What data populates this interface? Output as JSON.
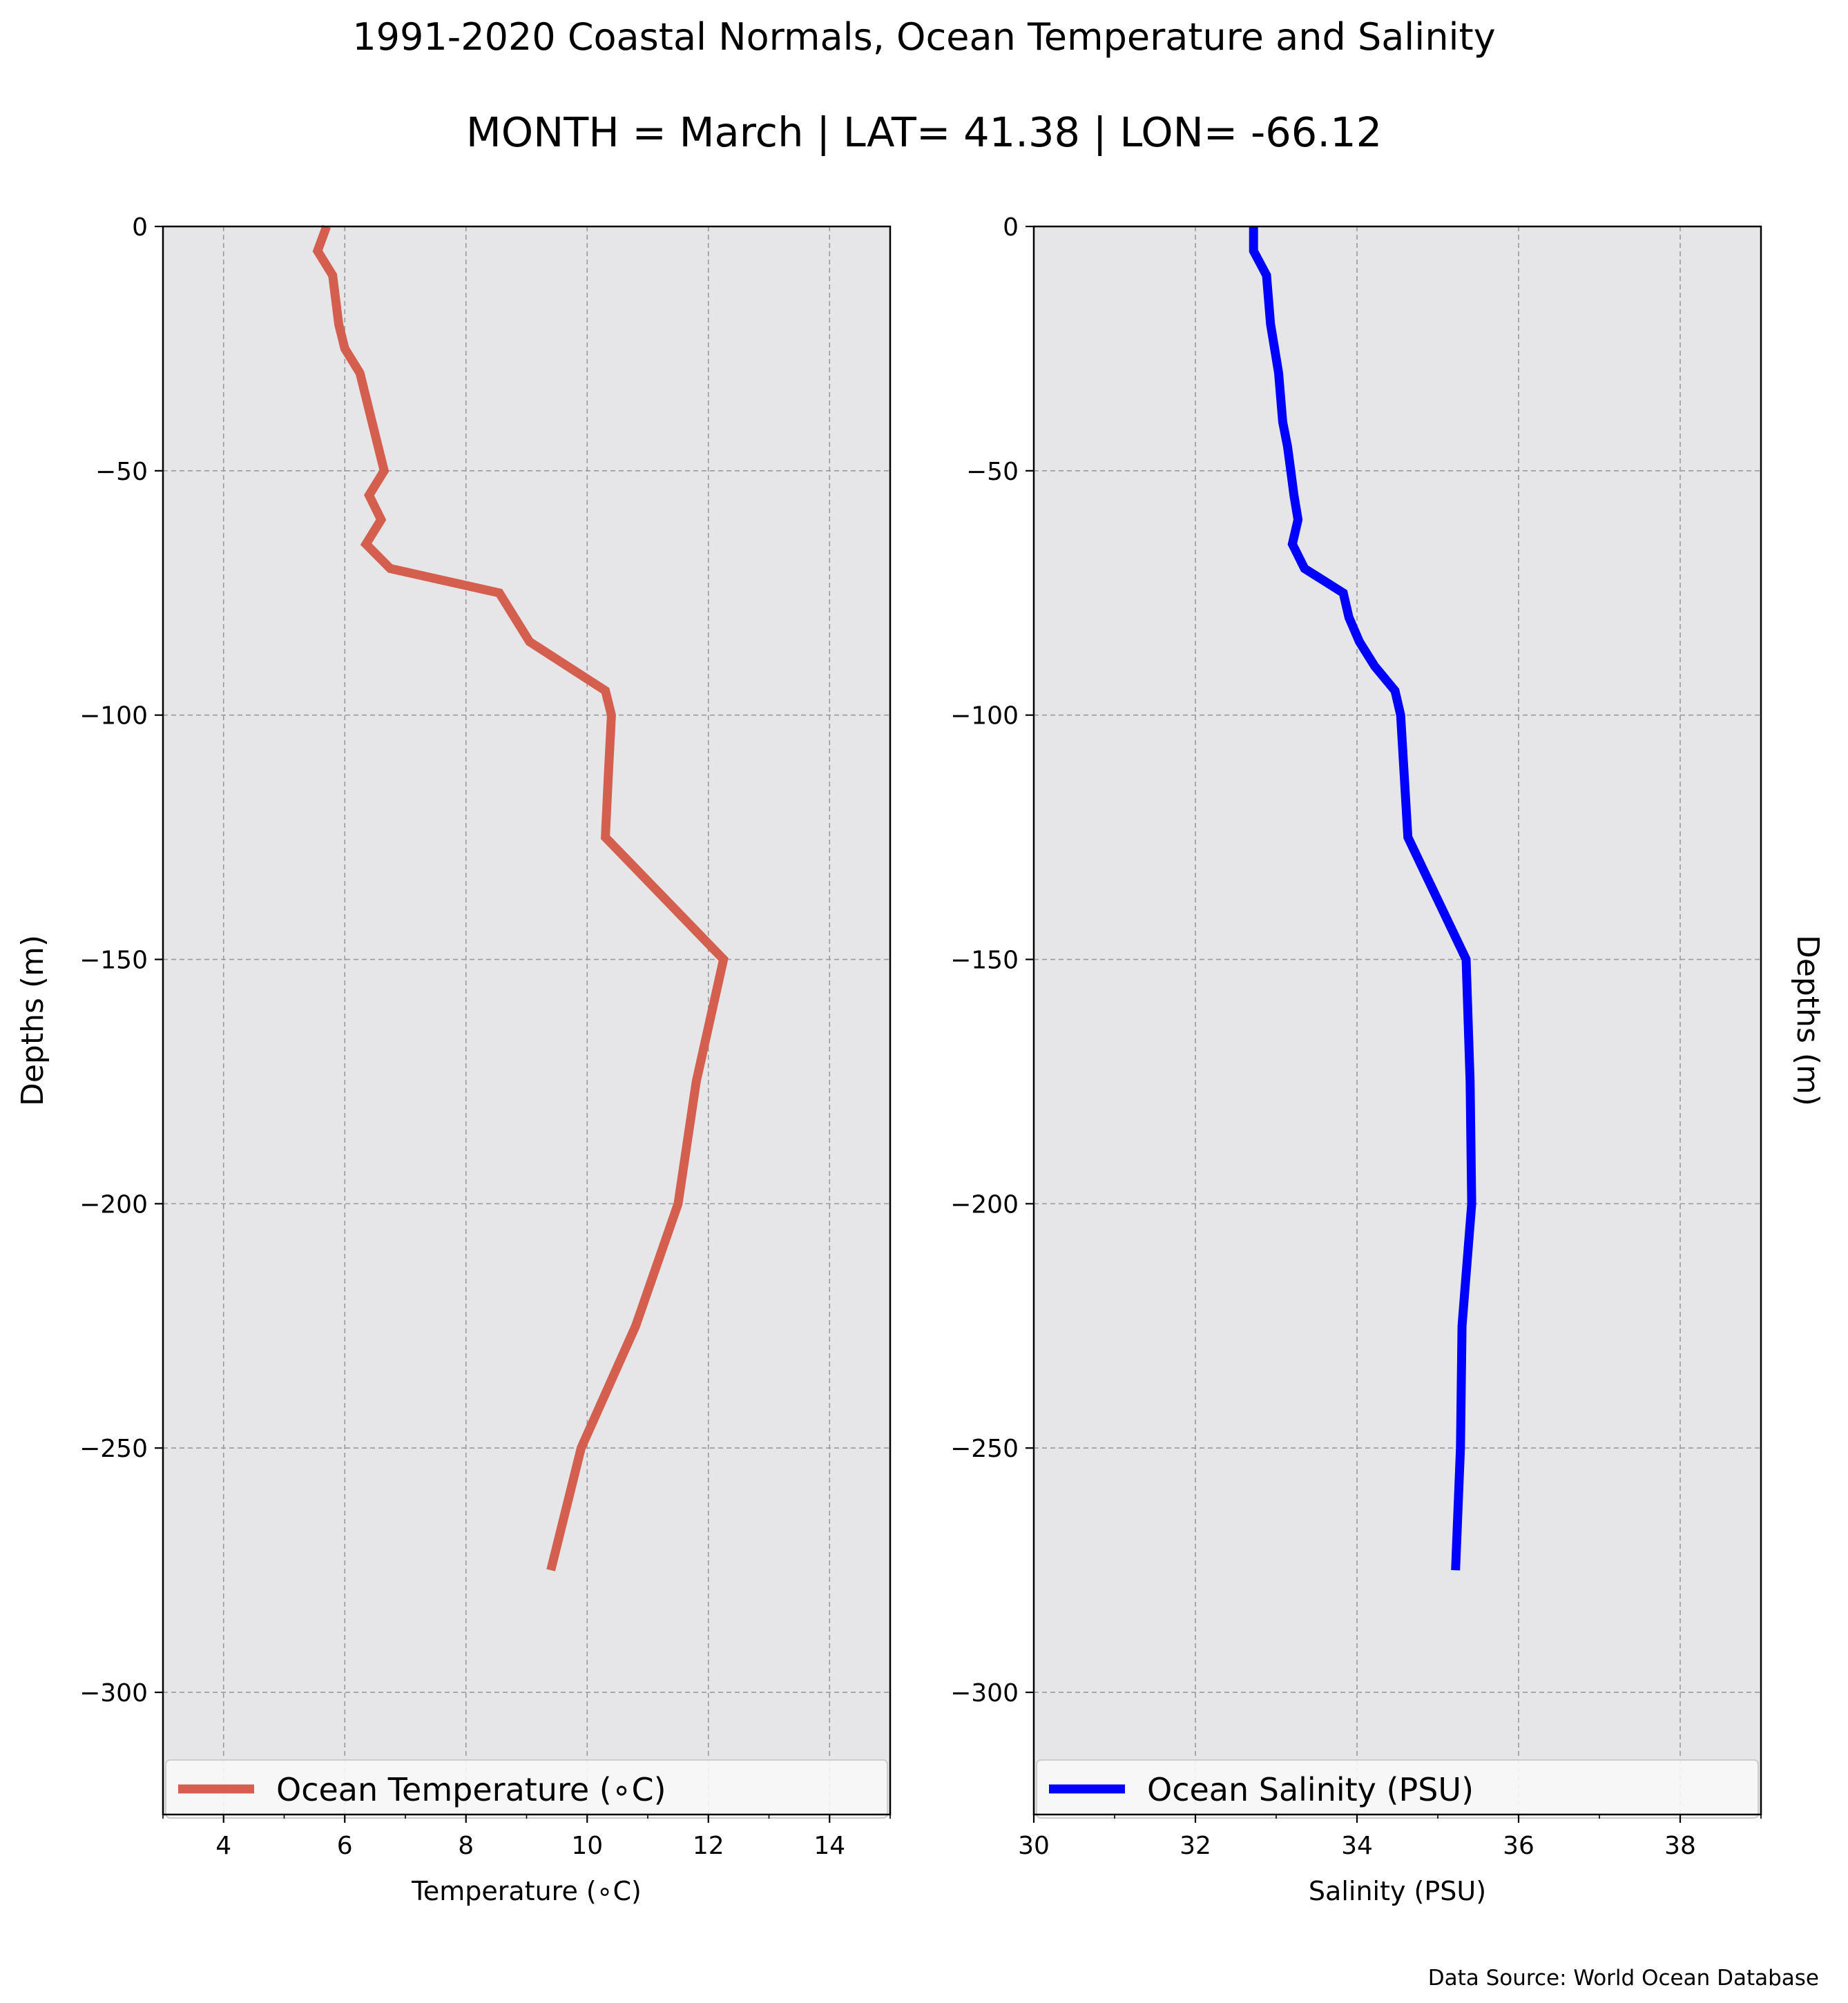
{
  "title": "1991-2020 Coastal Normals, Ocean Temperature and Salinity",
  "subtitle": "MONTH = March | LAT= 41.38 | LON= -66.12",
  "source_note": "Data Source: World Ocean Database",
  "colors": {
    "plot_background": "#e6e6e8",
    "grid": "#999999",
    "temperature_line": "#d55f4e",
    "salinity_line": "#0000ff",
    "axis": "#000000",
    "legend_background": "#f8f8f8",
    "legend_border": "#cccccc"
  },
  "chart_data": [
    {
      "type": "line",
      "xlabel": "Temperature (∘C)",
      "ylabel": "Depths (m)",
      "xlim": [
        3,
        15
      ],
      "ylim": [
        -325,
        0
      ],
      "xticks": [
        4,
        6,
        8,
        10,
        12,
        14
      ],
      "xtick_labels": [
        "4",
        "6",
        "8",
        "10",
        "12",
        "14"
      ],
      "xminor_ticks": [
        3,
        5,
        7,
        9,
        11,
        13,
        15
      ],
      "yticks": [
        0,
        -50,
        -100,
        -150,
        -200,
        -250,
        -300
      ],
      "ytick_labels": [
        "0",
        "−50",
        "−100",
        "−150",
        "−200",
        "−250",
        "−300"
      ],
      "grid": true,
      "legend_placement": "bottom",
      "series": [
        {
          "name": "Ocean Temperature (∘C)",
          "color": "#d55f4e",
          "x": [
            5.7,
            5.55,
            5.8,
            5.9,
            6.0,
            6.25,
            6.45,
            6.55,
            6.65,
            6.4,
            6.6,
            6.35,
            6.75,
            8.55,
            8.8,
            9.05,
            10.3,
            10.4,
            10.35,
            10.3,
            12.25,
            11.8,
            11.5,
            10.8,
            9.9,
            9.4
          ],
          "y": [
            0,
            -5,
            -10,
            -20,
            -25,
            -30,
            -40,
            -45,
            -50,
            -55,
            -60,
            -65,
            -70,
            -75,
            -80,
            -85,
            -95,
            -100,
            -112,
            -125,
            -150,
            -175,
            -200,
            -225,
            -250,
            -275
          ]
        }
      ]
    },
    {
      "type": "line",
      "xlabel": "Salinity (PSU)",
      "ylabel": "Depths (m)",
      "xlim": [
        30,
        39
      ],
      "ylim": [
        -325,
        0
      ],
      "xticks": [
        30,
        32,
        34,
        36,
        38
      ],
      "xtick_labels": [
        "30",
        "32",
        "34",
        "36",
        "38"
      ],
      "xminor_ticks": [
        31,
        33,
        35,
        37,
        39
      ],
      "yticks": [
        0,
        -50,
        -100,
        -150,
        -200,
        -250,
        -300
      ],
      "ytick_labels": [
        "0",
        "−50",
        "−100",
        "−150",
        "−200",
        "−250",
        "−300"
      ],
      "grid": true,
      "legend_placement": "bottom",
      "series": [
        {
          "name": "Ocean Salinity (PSU)",
          "color": "#0000ff",
          "x": [
            32.72,
            32.72,
            32.88,
            32.93,
            32.98,
            33.03,
            33.08,
            33.14,
            33.18,
            33.22,
            33.27,
            33.2,
            33.35,
            33.83,
            33.9,
            34.03,
            34.22,
            34.47,
            34.54,
            34.63,
            35.35,
            35.4,
            35.42,
            35.3,
            35.28,
            35.22
          ],
          "y": [
            0,
            -5,
            -10,
            -20,
            -25,
            -30,
            -40,
            -45,
            -50,
            -55,
            -60,
            -65,
            -70,
            -75,
            -80,
            -85,
            -90,
            -95,
            -100,
            -125,
            -150,
            -175,
            -200,
            -225,
            -250,
            -275
          ]
        }
      ]
    }
  ]
}
